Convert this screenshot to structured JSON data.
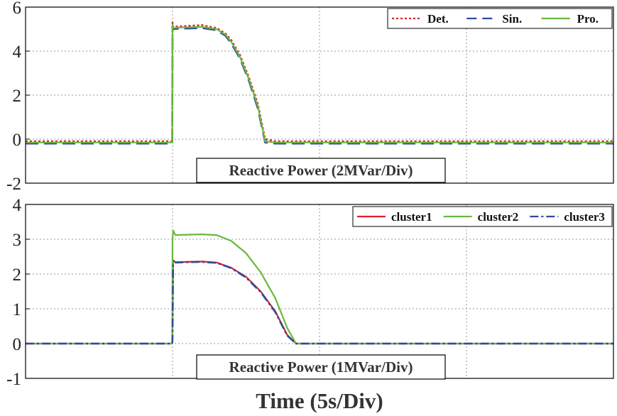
{
  "figure": {
    "xlabel": "Time (5s/Div)"
  },
  "chart_data": [
    {
      "type": "line",
      "title": "Reactive Power (2MVar/Div)",
      "xlabel": "Time (5s/Div)",
      "ylabel": "",
      "xlim": [
        0,
        20
      ],
      "ylim": [
        -2,
        6
      ],
      "yticks": [
        -2,
        0,
        2,
        4,
        6
      ],
      "ytick_labels": [
        "-2",
        "0",
        "2",
        "4",
        "6"
      ],
      "x_gridlines": [
        5,
        10,
        15
      ],
      "grid": true,
      "legend_position": "top-right",
      "series": [
        {
          "name": "Det.",
          "color": "#e0202a",
          "style": "dotted",
          "x": [
            0,
            4.99,
            5.0,
            5.02,
            5.2,
            6.0,
            6.5,
            6.8,
            7.0,
            7.3,
            7.6,
            7.9,
            8.15,
            8.5,
            12,
            16,
            20
          ],
          "y": [
            -0.1,
            -0.1,
            5.3,
            5.1,
            5.12,
            5.18,
            5.05,
            4.8,
            4.5,
            3.8,
            2.8,
            1.6,
            0.0,
            -0.1,
            -0.1,
            -0.1,
            -0.1
          ]
        },
        {
          "name": "Sin.",
          "color": "#2d4a9c",
          "style": "dashed",
          "x": [
            0,
            4.99,
            5.0,
            5.02,
            5.2,
            6.0,
            6.5,
            6.8,
            7.0,
            7.3,
            7.6,
            7.9,
            8.15,
            8.5,
            12,
            16,
            20
          ],
          "y": [
            -0.2,
            -0.2,
            5.1,
            5.0,
            5.02,
            5.05,
            4.95,
            4.7,
            4.35,
            3.65,
            2.65,
            1.4,
            -0.15,
            -0.2,
            -0.2,
            -0.2,
            -0.2
          ]
        },
        {
          "name": "Pro.",
          "color": "#6ab83d",
          "style": "solid",
          "x": [
            0,
            4.99,
            5.0,
            5.02,
            5.2,
            6.0,
            6.5,
            6.8,
            7.0,
            7.3,
            7.6,
            7.9,
            8.15,
            8.5,
            12,
            16,
            20
          ],
          "y": [
            -0.15,
            -0.15,
            5.2,
            5.05,
            5.07,
            5.1,
            5.0,
            4.75,
            4.42,
            3.72,
            2.72,
            1.5,
            -0.1,
            -0.15,
            -0.15,
            -0.15,
            -0.15
          ]
        }
      ]
    },
    {
      "type": "line",
      "title": "Reactive Power (1MVar/Div)",
      "xlabel": "Time (5s/Div)",
      "ylabel": "",
      "xlim": [
        0,
        20
      ],
      "ylim": [
        -1,
        4
      ],
      "yticks": [
        -1,
        0,
        1,
        2,
        3,
        4
      ],
      "ytick_labels": [
        "-1",
        "0",
        "1",
        "2",
        "3",
        "4"
      ],
      "x_gridlines": [
        5,
        10,
        15
      ],
      "grid": true,
      "legend_position": "top-right",
      "series": [
        {
          "name": "cluster1",
          "color": "#e0202a",
          "style": "solid",
          "x": [
            0,
            4.99,
            5.0,
            5.02,
            5.1,
            5.5,
            6.0,
            6.5,
            7.0,
            7.5,
            8.0,
            8.5,
            8.9,
            9.2,
            12,
            16,
            20
          ],
          "y": [
            0,
            0,
            0.6,
            2.4,
            2.34,
            2.35,
            2.36,
            2.33,
            2.18,
            1.92,
            1.5,
            0.92,
            0.25,
            0.0,
            0.0,
            0.0,
            0.0
          ]
        },
        {
          "name": "cluster2",
          "color": "#6ab83d",
          "style": "solid",
          "x": [
            0,
            4.99,
            5.0,
            5.02,
            5.1,
            5.5,
            6.0,
            6.5,
            7.0,
            7.5,
            8.0,
            8.5,
            8.9,
            9.2,
            12,
            16,
            20
          ],
          "y": [
            0,
            0,
            3.0,
            3.25,
            3.12,
            3.13,
            3.14,
            3.12,
            2.95,
            2.6,
            2.05,
            1.3,
            0.45,
            0.0,
            0.0,
            0.0,
            0.0
          ]
        },
        {
          "name": "cluster3",
          "color": "#2d4a9c",
          "style": "dashdot",
          "x": [
            0,
            4.99,
            5.0,
            5.02,
            5.1,
            5.5,
            6.0,
            6.5,
            7.0,
            7.5,
            8.0,
            8.5,
            8.9,
            9.2,
            12,
            16,
            20
          ],
          "y": [
            0,
            0,
            0.2,
            2.3,
            2.33,
            2.34,
            2.35,
            2.32,
            2.17,
            1.9,
            1.48,
            0.9,
            0.23,
            0.0,
            0.0,
            0.0,
            0.0
          ]
        }
      ]
    }
  ]
}
